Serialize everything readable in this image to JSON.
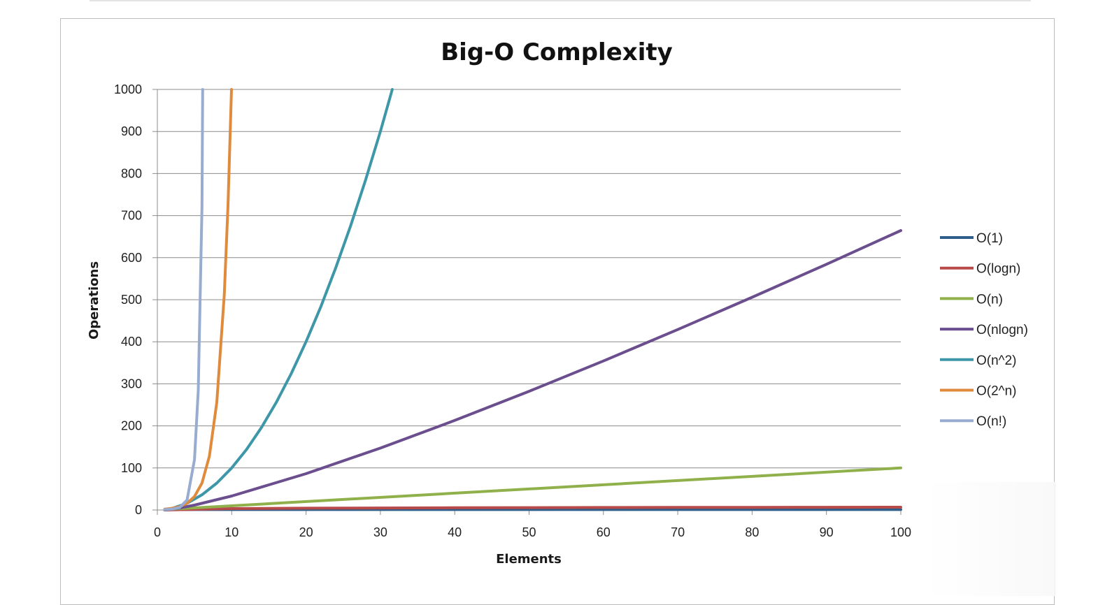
{
  "chart_data": {
    "type": "line",
    "title": "Big-O Complexity",
    "xlabel": "Elements",
    "ylabel": "Operations",
    "xlim": [
      0,
      100
    ],
    "ylim": [
      0,
      1000
    ],
    "x_ticks": [
      0,
      10,
      20,
      30,
      40,
      50,
      60,
      70,
      80,
      90,
      100
    ],
    "y_ticks": [
      0,
      100,
      200,
      300,
      400,
      500,
      600,
      700,
      800,
      900,
      1000
    ],
    "grid": "horizontal",
    "legend_position": "right",
    "series": [
      {
        "name": "O(1)",
        "color": "#2e5f8c",
        "x": [
          1,
          100
        ],
        "y": [
          1,
          1
        ]
      },
      {
        "name": "O(logn)",
        "color": "#b84a4a",
        "x": [
          1,
          10,
          20,
          30,
          40,
          50,
          60,
          70,
          80,
          90,
          100
        ],
        "y": [
          0,
          3.3,
          4.3,
          4.9,
          5.3,
          5.6,
          5.9,
          6.1,
          6.3,
          6.5,
          6.6
        ]
      },
      {
        "name": "O(n)",
        "color": "#8fb04a",
        "x": [
          1,
          100
        ],
        "y": [
          1,
          100
        ]
      },
      {
        "name": "O(nlogn)",
        "color": "#6b4e8e",
        "x": [
          1,
          2,
          3,
          5,
          10,
          20,
          30,
          40,
          50,
          60,
          70,
          80,
          90,
          100
        ],
        "y": [
          0,
          2,
          4.8,
          11.6,
          33.2,
          86.4,
          147.2,
          212.9,
          282.2,
          354.4,
          429.1,
          505.8,
          584.3,
          664.4
        ]
      },
      {
        "name": "O(n^2)",
        "color": "#3d97a8",
        "x": [
          1,
          2,
          4,
          6,
          8,
          10,
          12,
          14,
          16,
          18,
          20,
          22,
          24,
          26,
          28,
          30,
          31.6
        ],
        "y": [
          1,
          4,
          16,
          36,
          64,
          100,
          144,
          196,
          256,
          324,
          400,
          484,
          576,
          676,
          784,
          900,
          1000
        ]
      },
      {
        "name": "O(2^n)",
        "color": "#e08a3c",
        "x": [
          1,
          2,
          3,
          4,
          5,
          6,
          7,
          8,
          9,
          9.5,
          9.97
        ],
        "y": [
          2,
          4,
          8,
          16,
          32,
          64,
          128,
          256,
          512,
          724,
          1000
        ]
      },
      {
        "name": "O(n!)",
        "color": "#98abd0",
        "x": [
          1,
          2,
          3,
          4,
          5,
          5.5,
          6,
          6.1
        ],
        "y": [
          1,
          2,
          6,
          24,
          120,
          285,
          720,
          1000
        ]
      }
    ]
  }
}
